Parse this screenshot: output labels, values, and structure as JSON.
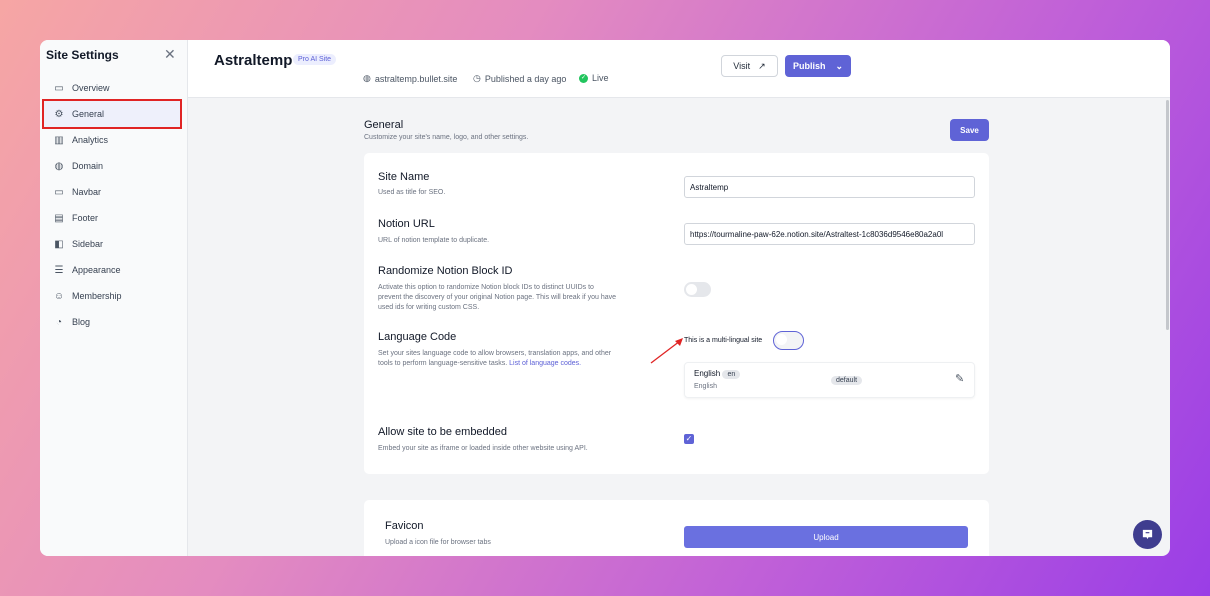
{
  "sidebar": {
    "title": "Site Settings",
    "items": [
      {
        "label": "Overview",
        "icon": "presentation-icon"
      },
      {
        "label": "General",
        "icon": "gear-icon",
        "active": true
      },
      {
        "label": "Analytics",
        "icon": "bar-chart-icon"
      },
      {
        "label": "Domain",
        "icon": "globe-icon"
      },
      {
        "label": "Navbar",
        "icon": "monitor-icon"
      },
      {
        "label": "Footer",
        "icon": "footer-layout-icon"
      },
      {
        "label": "Sidebar",
        "icon": "sidebar-layout-icon"
      },
      {
        "label": "Appearance",
        "icon": "sliders-icon"
      },
      {
        "label": "Membership",
        "icon": "users-icon"
      },
      {
        "label": "Blog",
        "icon": "blog-icon"
      }
    ]
  },
  "header": {
    "title": "Astraltemp",
    "badge": "Pro AI Site",
    "domain": "astraltemp.bullet.site",
    "published": "Published a day ago",
    "status": "Live",
    "visit": "Visit",
    "publish": "Publish"
  },
  "section": {
    "title": "General",
    "subtitle": "Customize your site's name, logo, and other settings.",
    "save": "Save"
  },
  "fields": {
    "site_name": {
      "label": "Site Name",
      "desc": "Used as title for SEO.",
      "value": "Astraltemp"
    },
    "notion_url": {
      "label": "Notion URL",
      "desc": "URL of notion template to duplicate.",
      "value": "https://tourmaline-paw-62e.notion.site/Astraltest-1c8036d9546e80a2a0l"
    },
    "randomize": {
      "label": "Randomize Notion Block ID",
      "desc": "Activate this option to randomize Notion block IDs to distinct UUIDs to prevent the discovery of your original Notion page. This will break if you have used ids for writing custom CSS.",
      "enabled": false
    },
    "language": {
      "label": "Language Code",
      "desc": "Set your sites language code to allow browsers, translation apps, and other tools to perform language-sensitive tasks. ",
      "link": "List of language codes.",
      "multilingual_label": "This is a multi-lingual site",
      "multilingual": false,
      "entry": {
        "name": "English",
        "code": "en",
        "sub": "English",
        "tag": "default"
      }
    },
    "embed": {
      "label": "Allow site to be embedded",
      "desc": "Embed your site as iframe or loaded inside other website using API.",
      "checked": true
    },
    "favicon": {
      "label": "Favicon",
      "desc": "Upload a icon file for browser tabs",
      "button": "Upload"
    }
  },
  "colors": {
    "accent": "#5f63d6",
    "highlight": "#e02424",
    "live": "#22c55e"
  }
}
